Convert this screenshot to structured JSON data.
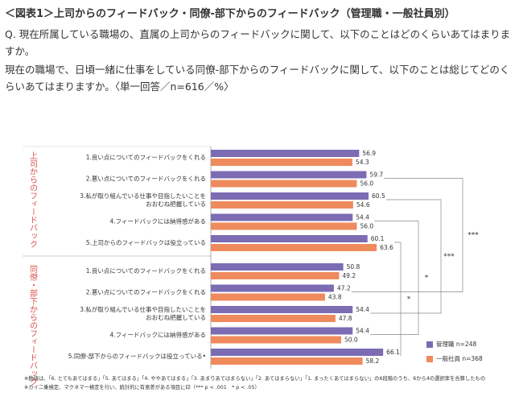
{
  "header": {
    "title": "＜図表1＞上司からのフィードバック・同僚-部下からのフィードバック（管理職・一般社員別）",
    "question1": "Q. 現在所属している職場の、直属の上司からのフィードバックに関して、以下のことはどのくらいあてはまりますか。",
    "question2": "現在の職場で、日頃一緒に仕事をしている同僚-部下からのフィードバックに関して、以下のことは総じてどのくらいあてはまりますか。〈単一回答／n=616／%〉"
  },
  "chart_data": [
    {
      "type": "bar",
      "group": "上司からのフィードバック",
      "categories": [
        "1.良い点についてのフィードバックをくれる",
        "2.悪い点についてのフィードバックをくれる",
        "3.私が取り組んでいる仕事や目指したいことを\nおおむね把握している",
        "4.フィードバックには納得感がある",
        "5.上司からのフィードバックは役立っている"
      ],
      "series": [
        {
          "name": "管理職 n=248",
          "color": "#7b6cb3",
          "values": [
            56.9,
            59.7,
            60.5,
            54.4,
            60.1
          ],
          "value_labels": [
            "56.9",
            "59.7",
            "60.5",
            "54.4",
            "60.1"
          ]
        },
        {
          "name": "一般社員 n=368",
          "color": "#ef8a5d",
          "values": [
            54.3,
            56.0,
            54.6,
            56.0,
            63.6
          ],
          "value_labels": [
            "54.3",
            "56.0",
            "54.6",
            "56.0",
            "63.6"
          ]
        }
      ]
    },
    {
      "type": "bar",
      "group": "同僚・部下からのフィードバック",
      "categories": [
        "1.良い点についてのフィードバックをくれる",
        "2.悪い点についてのフィードバックをくれる",
        "3.私が取り組んでいる仕事や目指したいことを\nおおむね把握している",
        "4.フィードバックには納得感がある",
        "5.同僚‐部下からのフィードバックは役立っている•"
      ],
      "series": [
        {
          "name": "管理職 n=248",
          "color": "#7b6cb3",
          "values": [
            50.8,
            47.2,
            54.4,
            54.4,
            66.1
          ],
          "value_labels": [
            "50.8",
            "47.2",
            "54.4",
            "54.4",
            "66.1"
          ]
        },
        {
          "name": "一般社員 n=368",
          "color": "#ef8a5d",
          "values": [
            49.2,
            43.8,
            47.8,
            50.0,
            58.2
          ],
          "value_labels": [
            "49.2",
            "43.8",
            "47.8",
            "50.0",
            "58.2"
          ]
        }
      ]
    }
  ],
  "significance": [
    "***",
    "***",
    "*",
    "*"
  ],
  "footnotes": [
    "※数値は、「6. とてもあてはまる」「5. あてはまる」「4. ややあてはまる」「3. あまりあてはまらない」「2. あてはまらない」「1. まったくあてはまらない」の6段階のうち、6から4の選択率を合算したもの",
    "※カイ二乗検定、マクネマー検定を行い、統計的に有意差がある項目に印（*** p < .001　* p < .05）"
  ]
}
